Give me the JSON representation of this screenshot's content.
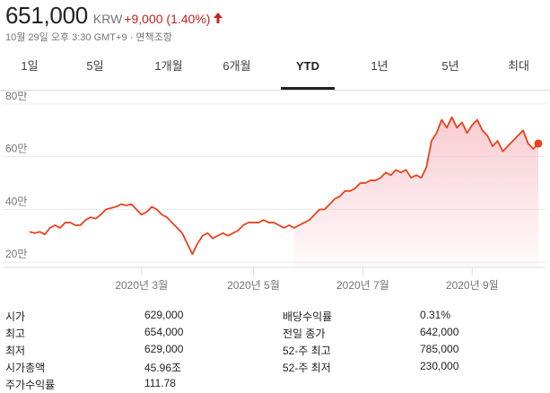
{
  "quote": {
    "price": "651,000",
    "currency": "KRW",
    "change": "+9,000 (1.40%)",
    "timestamp": "10월 29일 오후 3:30 GMT+9 · 면책조항",
    "up_color": "#c5221f",
    "arrow_icon": "arrow-up-icon"
  },
  "tabs": [
    {
      "label": "1일",
      "active": false
    },
    {
      "label": "5일",
      "active": false
    },
    {
      "label": "1개월",
      "active": false
    },
    {
      "label": "6개월",
      "active": false
    },
    {
      "label": "YTD",
      "active": true
    },
    {
      "label": "1년",
      "active": false
    },
    {
      "label": "5년",
      "active": false
    },
    {
      "label": "최대",
      "active": false
    }
  ],
  "chart_data": {
    "type": "area",
    "line_color": "#e8431a",
    "fill_color": "#f8c9d0",
    "grid": true,
    "ylim": [
      18,
      82
    ],
    "yticks": [
      {
        "value": 20,
        "label": "20만"
      },
      {
        "value": 40,
        "label": "40만"
      },
      {
        "value": 60,
        "label": "60만"
      },
      {
        "value": 80,
        "label": "80만"
      }
    ],
    "xlim": [
      0,
      1
    ],
    "xticks": [
      {
        "value": 0.22,
        "label": "2020년 3월"
      },
      {
        "value": 0.44,
        "label": "2020년 5월"
      },
      {
        "value": 0.655,
        "label": "2020년 7월"
      },
      {
        "value": 0.87,
        "label": "2020년 9월"
      }
    ],
    "x": [
      0.0,
      0.01,
      0.02,
      0.03,
      0.04,
      0.05,
      0.06,
      0.07,
      0.08,
      0.09,
      0.1,
      0.11,
      0.12,
      0.13,
      0.14,
      0.15,
      0.16,
      0.17,
      0.18,
      0.19,
      0.2,
      0.21,
      0.22,
      0.23,
      0.24,
      0.25,
      0.26,
      0.27,
      0.28,
      0.29,
      0.3,
      0.31,
      0.32,
      0.33,
      0.34,
      0.35,
      0.36,
      0.37,
      0.38,
      0.39,
      0.4,
      0.41,
      0.42,
      0.43,
      0.44,
      0.45,
      0.46,
      0.47,
      0.48,
      0.49,
      0.5,
      0.51,
      0.52,
      0.53,
      0.54,
      0.55,
      0.56,
      0.57,
      0.58,
      0.59,
      0.6,
      0.61,
      0.62,
      0.63,
      0.64,
      0.65,
      0.66,
      0.67,
      0.68,
      0.69,
      0.7,
      0.71,
      0.72,
      0.73,
      0.74,
      0.75,
      0.76,
      0.77,
      0.78,
      0.79,
      0.8,
      0.81,
      0.82,
      0.83,
      0.84,
      0.85,
      0.86,
      0.87,
      0.88,
      0.89,
      0.9,
      0.91,
      0.92,
      0.93,
      0.94,
      0.95,
      0.96,
      0.97,
      0.98,
      0.99,
      1.0
    ],
    "values": [
      31.5,
      31,
      31.5,
      30.5,
      33,
      34,
      33,
      35,
      35,
      34,
      34,
      36,
      37,
      36.5,
      38,
      40,
      40.5,
      41,
      42,
      41.5,
      42,
      40,
      38,
      39,
      41,
      40,
      38,
      37,
      35,
      33,
      31,
      27,
      23,
      27,
      30,
      31,
      29,
      30,
      31,
      30,
      31,
      32,
      34,
      35,
      35,
      35,
      36,
      35,
      35,
      34,
      33,
      34,
      33,
      34,
      35,
      36,
      38,
      40,
      40,
      42,
      44,
      45,
      47,
      47,
      48,
      50,
      50,
      51,
      51,
      52,
      54,
      53,
      55,
      54,
      55,
      52,
      53,
      52,
      56,
      66,
      69,
      74,
      71,
      75,
      71,
      73,
      69,
      72,
      74,
      70,
      68,
      64,
      66,
      62,
      64,
      66,
      68,
      70,
      65,
      63,
      65
    ]
  },
  "stats": {
    "left": [
      {
        "label": "시가",
        "value": "629,000"
      },
      {
        "label": "최고",
        "value": "654,000"
      },
      {
        "label": "최저",
        "value": "629,000"
      },
      {
        "label": "시가총액",
        "value": "45.96조"
      },
      {
        "label": "주가수익률",
        "value": "111.78"
      }
    ],
    "right": [
      {
        "label": "배당수익률",
        "value": "0.31%"
      },
      {
        "label": "전일 종가",
        "value": "642,000"
      },
      {
        "label": "52-주 최고",
        "value": "785,000"
      },
      {
        "label": "52-주 최저",
        "value": "230,000"
      }
    ]
  }
}
